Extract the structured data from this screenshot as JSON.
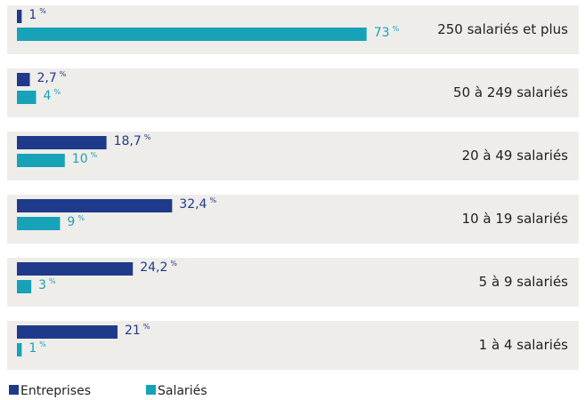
{
  "chart_data": {
    "type": "bar",
    "orientation": "horizontal",
    "categories": [
      "250 salariés et plus",
      "50 à 249 salariés",
      "20 à 49 salariés",
      "10 à 19 salariés",
      "5 à 9 salariés",
      "1 à 4 salariés"
    ],
    "unit": "%",
    "series": [
      {
        "name": "Entreprises",
        "color": "#1f3a8a",
        "values": [
          1,
          2.7,
          18.7,
          32.4,
          24.2,
          21
        ],
        "value_labels": [
          "1",
          "2,7",
          "18,7",
          "32,4",
          "24,2",
          "21"
        ]
      },
      {
        "name": "Salariés",
        "color": "#17a2b8",
        "values": [
          73,
          4,
          10,
          9,
          3,
          1
        ],
        "value_labels": [
          "73",
          "4",
          "10",
          "9",
          "3",
          "1"
        ]
      }
    ]
  }
}
